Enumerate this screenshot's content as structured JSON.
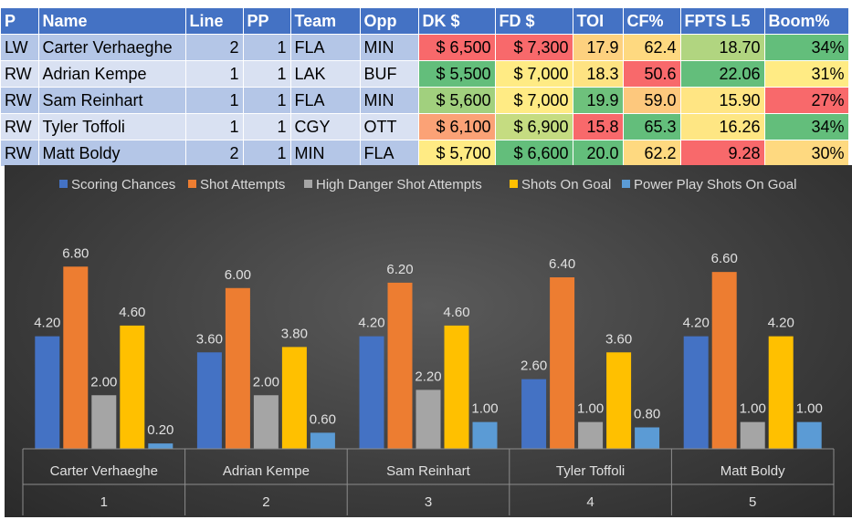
{
  "table": {
    "headers": [
      "P",
      "Name",
      "Line",
      "PP",
      "Team",
      "Opp",
      "DK $",
      "FD $",
      "TOI",
      "CF%",
      "FPTS L5",
      "Boom%"
    ],
    "rows": [
      {
        "pos": "LW",
        "name": "Carter Verhaeghe",
        "line": "2",
        "pp": "1",
        "team": "FLA",
        "opp": "MIN",
        "dk": "$ 6,500",
        "fd": "$ 7,300",
        "toi": "17.9",
        "cf": "62.4",
        "fpts": "18.70",
        "boom": "34%",
        "colors": {
          "dk": "#f8696b",
          "fd": "#f8696b",
          "toi": "#fdd17f",
          "cf": "#fed980",
          "fpts": "#b1d580",
          "boom": "#63be7b"
        }
      },
      {
        "pos": "RW",
        "name": "Adrian Kempe",
        "line": "1",
        "pp": "1",
        "team": "LAK",
        "opp": "BUF",
        "dk": "$ 5,500",
        "fd": "$ 7,000",
        "toi": "18.3",
        "cf": "50.6",
        "fpts": "22.06",
        "boom": "31%",
        "colors": {
          "dk": "#63be7b",
          "fd": "#ffeb84",
          "toi": "#fee382",
          "cf": "#f8696b",
          "fpts": "#63be7b",
          "boom": "#ffeb84"
        }
      },
      {
        "pos": "RW",
        "name": "Sam Reinhart",
        "line": "1",
        "pp": "1",
        "team": "FLA",
        "opp": "MIN",
        "dk": "$ 5,600",
        "fd": "$ 7,000",
        "toi": "19.9",
        "cf": "59.0",
        "fpts": "15.90",
        "boom": "27%",
        "colors": {
          "dk": "#a1d07e",
          "fd": "#ffeb84",
          "toi": "#6ec17c",
          "cf": "#fdc87d",
          "fpts": "#ffe583",
          "boom": "#f8696b"
        }
      },
      {
        "pos": "RW",
        "name": "Tyler Toffoli",
        "line": "1",
        "pp": "1",
        "team": "CGY",
        "opp": "OTT",
        "dk": "$ 6,100",
        "fd": "$ 6,900",
        "toi": "15.8",
        "cf": "65.3",
        "fpts": "16.26",
        "boom": "34%",
        "colors": {
          "dk": "#fba276",
          "fd": "#c5dc81",
          "toi": "#f8696b",
          "cf": "#63be7b",
          "fpts": "#fee683",
          "boom": "#63be7b"
        }
      },
      {
        "pos": "RW",
        "name": "Matt Boldy",
        "line": "2",
        "pp": "1",
        "team": "MIN",
        "opp": "FLA",
        "dk": "$ 5,700",
        "fd": "$ 6,600",
        "toi": "20.0",
        "cf": "62.2",
        "fpts": "9.28",
        "boom": "30%",
        "colors": {
          "dk": "#ffeb84",
          "fd": "#63be7b",
          "toi": "#63be7b",
          "cf": "#fed980",
          "fpts": "#f8696b",
          "boom": "#fed980"
        }
      }
    ]
  },
  "chart_data": {
    "type": "bar",
    "title": "",
    "xlabel": "",
    "ylabel": "",
    "grid": false,
    "legend": "top",
    "categories": [
      {
        "name": "Carter Verhaeghe",
        "index": "1"
      },
      {
        "name": "Adrian Kempe",
        "index": "2"
      },
      {
        "name": "Sam Reinhart",
        "index": "3"
      },
      {
        "name": "Tyler Toffoli",
        "index": "4"
      },
      {
        "name": "Matt Boldy",
        "index": "5"
      }
    ],
    "ylim": [
      0,
      8
    ],
    "series": [
      {
        "name": "Scoring Chances",
        "color": "#4472c4",
        "values": [
          4.2,
          3.6,
          4.2,
          2.6,
          4.2
        ],
        "labels": [
          "4.20",
          "3.60",
          "4.20",
          "2.60",
          "4.20"
        ]
      },
      {
        "name": "Shot Attempts",
        "color": "#ed7d31",
        "values": [
          6.8,
          6.0,
          6.2,
          6.4,
          6.6
        ],
        "labels": [
          "6.80",
          "6.00",
          "6.20",
          "6.40",
          "6.60"
        ]
      },
      {
        "name": "High Danger Shot Attempts",
        "color": "#a5a5a5",
        "values": [
          2.0,
          2.0,
          2.2,
          1.0,
          1.0
        ],
        "labels": [
          "2.00",
          "2.00",
          "2.20",
          "1.00",
          "1.00"
        ]
      },
      {
        "name": "Shots On Goal",
        "color": "#ffc000",
        "values": [
          4.6,
          3.8,
          4.6,
          3.6,
          4.2
        ],
        "labels": [
          "4.60",
          "3.80",
          "4.60",
          "3.60",
          "4.20"
        ]
      },
      {
        "name": "Power Play Shots On Goal",
        "color": "#5b9bd5",
        "values": [
          0.2,
          0.6,
          1.0,
          0.8,
          1.0
        ],
        "labels": [
          "0.20",
          "0.60",
          "1.00",
          "0.80",
          "1.00"
        ]
      }
    ]
  }
}
